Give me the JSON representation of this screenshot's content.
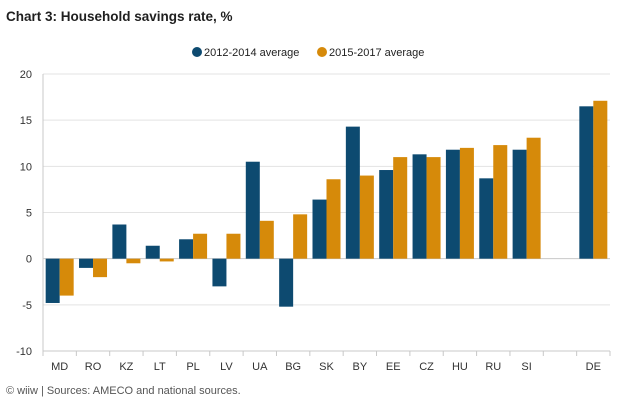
{
  "chart_data": {
    "type": "bar",
    "title": "Chart 3: Household savings rate, %",
    "xlabel": "",
    "ylabel": "",
    "ylim": [
      -10,
      20
    ],
    "yticks": [
      20,
      15,
      10,
      5,
      0,
      -5,
      -10
    ],
    "grid": true,
    "legend_position": "top-center",
    "categories": [
      "MD",
      "RO",
      "KZ",
      "LT",
      "PL",
      "LV",
      "UA",
      "BG",
      "SK",
      "BY",
      "EE",
      "CZ",
      "HU",
      "RU",
      "SI",
      "",
      "DE"
    ],
    "series": [
      {
        "name": "2012-2014 average",
        "color": "#0d4a70",
        "values": [
          -4.8,
          -1.0,
          3.7,
          1.4,
          2.1,
          -3.0,
          10.5,
          -5.2,
          6.4,
          14.3,
          9.6,
          11.3,
          11.8,
          8.7,
          11.8,
          null,
          16.5
        ]
      },
      {
        "name": "2015-2017 average",
        "color": "#d68a0a",
        "values": [
          -4.0,
          -2.0,
          -0.5,
          -0.3,
          2.7,
          2.7,
          4.1,
          4.8,
          8.6,
          9.0,
          11.0,
          11.0,
          12.0,
          12.3,
          13.1,
          null,
          17.1
        ]
      }
    ]
  },
  "footer": {
    "source": "© wiiw | Sources: AMECO and national sources."
  }
}
